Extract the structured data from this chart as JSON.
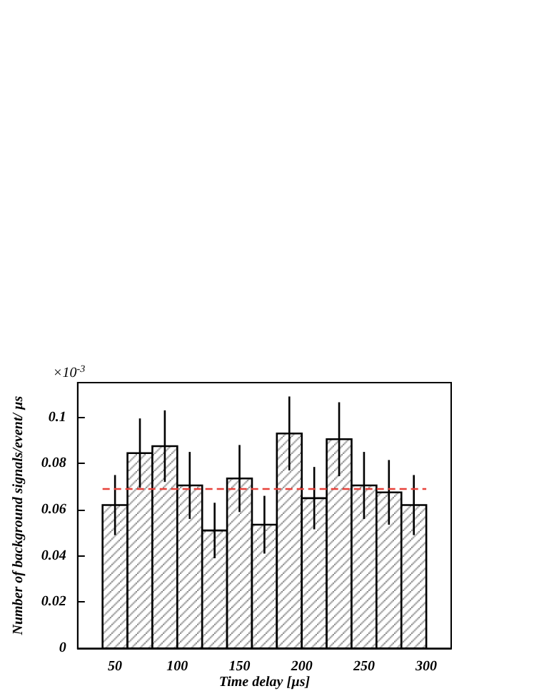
{
  "chart_data": {
    "type": "histogram",
    "xlabel": "Time delay [µs]",
    "ylabel": "Number of background signals/event/ µs",
    "annotations": [
      "×10$^{-3}$"
    ],
    "bins": [
      40,
      60,
      80,
      100,
      120,
      140,
      160,
      180,
      200,
      220,
      240,
      260,
      280,
      300
    ],
    "values": [
      0.062,
      0.0845,
      0.0875,
      0.0705,
      0.051,
      0.0735,
      0.0535,
      0.093,
      0.065,
      0.0905,
      0.0705,
      0.0675,
      0.062
    ],
    "errors": [
      0.013,
      0.015,
      0.0155,
      0.0145,
      0.012,
      0.0145,
      0.0125,
      0.016,
      0.0135,
      0.016,
      0.0145,
      0.014,
      0.013
    ],
    "color": "#000000",
    "xlim": [
      20,
      320
    ],
    "xticks": [
      50,
      100,
      150,
      200,
      250,
      300
    ],
    "ylim": [
      0,
      0.115
    ],
    "yticks": [
      0,
      0.02,
      0.04,
      0.06,
      0.08,
      0.1
    ],
    "ref_lines": [
      {
        "axis": "y",
        "value": 0.069,
        "color": "#e8413a",
        "line_style": "dashed"
      }
    ],
    "grid": false
  }
}
